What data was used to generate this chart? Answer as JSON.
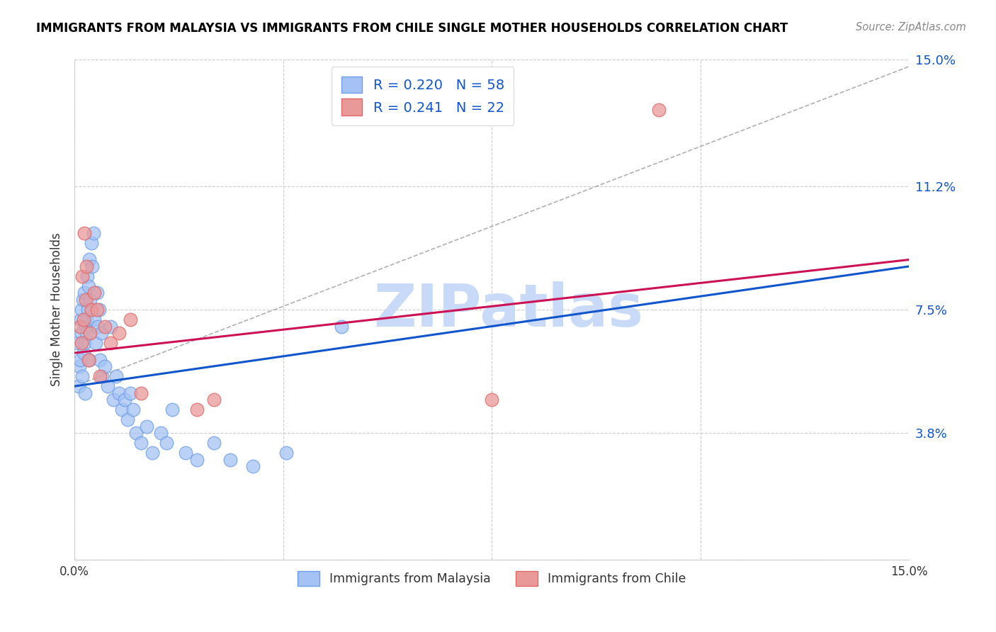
{
  "title": "IMMIGRANTS FROM MALAYSIA VS IMMIGRANTS FROM CHILE SINGLE MOTHER HOUSEHOLDS CORRELATION CHART",
  "source": "Source: ZipAtlas.com",
  "ylabel": "Single Mother Households",
  "xlim": [
    0,
    15
  ],
  "ylim": [
    0,
    15
  ],
  "yticks": [
    0,
    3.8,
    7.5,
    11.2,
    15.0
  ],
  "xticks": [
    0,
    3.75,
    7.5,
    11.25,
    15
  ],
  "malaysia_R": 0.22,
  "malaysia_N": 58,
  "chile_R": 0.241,
  "chile_N": 22,
  "malaysia_color": "#a4c2f4",
  "chile_color": "#ea9999",
  "malaysia_edge": "#6d9eeb",
  "chile_edge": "#e06666",
  "regression_line_malaysia_color": "#1155cc",
  "regression_line_chile_color": "#cc1155",
  "dashed_line_color": "#b0b0b0",
  "background_color": "#ffffff",
  "grid_color": "#cccccc",
  "title_color": "#000000",
  "watermark_color": "#c9daf8",
  "malaysia_x": [
    0.05,
    0.08,
    0.09,
    0.1,
    0.11,
    0.12,
    0.13,
    0.14,
    0.15,
    0.16,
    0.17,
    0.18,
    0.19,
    0.2,
    0.21,
    0.22,
    0.23,
    0.24,
    0.25,
    0.26,
    0.27,
    0.28,
    0.3,
    0.32,
    0.34,
    0.36,
    0.38,
    0.4,
    0.42,
    0.44,
    0.46,
    0.48,
    0.5,
    0.55,
    0.6,
    0.65,
    0.7,
    0.75,
    0.8,
    0.85,
    0.9,
    0.95,
    1.0,
    1.05,
    1.1,
    1.2,
    1.3,
    1.4,
    1.55,
    1.65,
    1.75,
    2.0,
    2.2,
    2.5,
    2.8,
    3.2,
    3.8,
    4.8
  ],
  "malaysia_y": [
    6.5,
    5.2,
    5.8,
    6.0,
    7.2,
    6.8,
    7.5,
    5.5,
    7.8,
    6.2,
    8.0,
    6.5,
    5.0,
    7.0,
    7.2,
    6.8,
    8.5,
    7.5,
    8.2,
    6.0,
    9.0,
    7.8,
    9.5,
    8.8,
    9.8,
    7.2,
    6.5,
    8.0,
    7.0,
    7.5,
    6.0,
    6.8,
    5.5,
    5.8,
    5.2,
    7.0,
    4.8,
    5.5,
    5.0,
    4.5,
    4.8,
    4.2,
    5.0,
    4.5,
    3.8,
    3.5,
    4.0,
    3.2,
    3.8,
    3.5,
    4.5,
    3.2,
    3.0,
    3.5,
    3.0,
    2.8,
    3.2,
    7.0
  ],
  "chile_x": [
    0.1,
    0.12,
    0.14,
    0.16,
    0.18,
    0.2,
    0.22,
    0.25,
    0.28,
    0.3,
    0.35,
    0.4,
    0.45,
    0.55,
    0.65,
    0.8,
    1.0,
    1.2,
    2.2,
    2.5,
    7.5,
    10.5
  ],
  "chile_y": [
    7.0,
    6.5,
    8.5,
    7.2,
    9.8,
    7.8,
    8.8,
    6.0,
    6.8,
    7.5,
    8.0,
    7.5,
    5.5,
    7.0,
    6.5,
    6.8,
    7.2,
    5.0,
    4.5,
    4.8,
    4.8,
    13.5
  ],
  "regression_malaysia_x0": 0,
  "regression_malaysia_y0": 5.2,
  "regression_malaysia_x1": 15,
  "regression_malaysia_y1": 8.8,
  "regression_chile_x0": 0,
  "regression_chile_y0": 6.2,
  "regression_chile_x1": 15,
  "regression_chile_y1": 9.0,
  "dashed_x0": 0,
  "dashed_y0": 5.2,
  "dashed_x1": 15,
  "dashed_y1": 14.8
}
